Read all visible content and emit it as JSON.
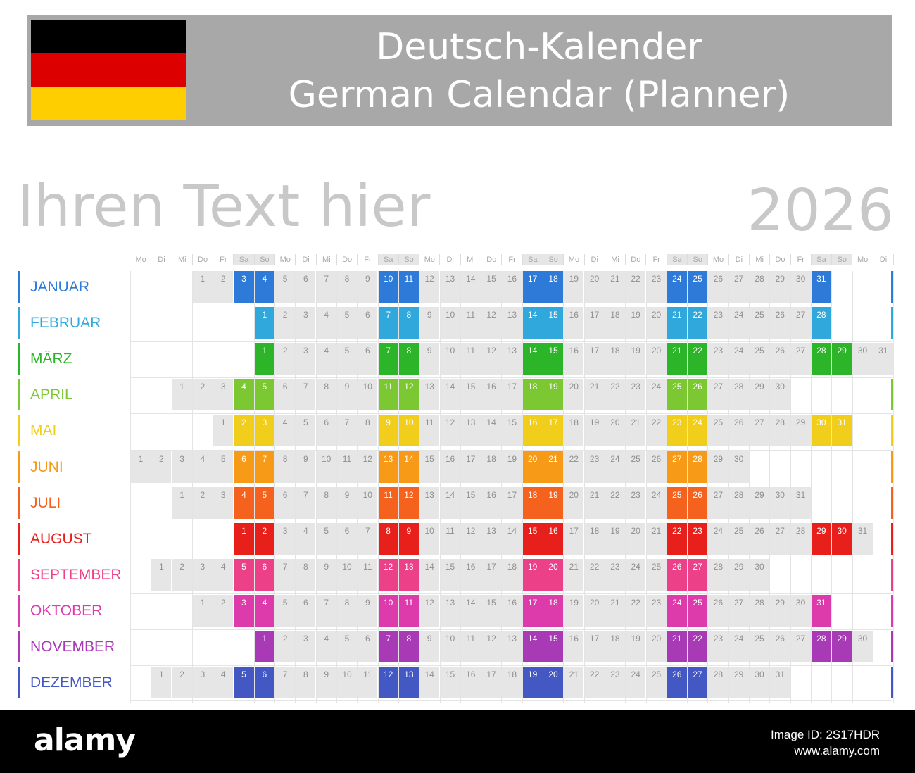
{
  "header": {
    "title_de": "Deutsch-Kalender",
    "title_en": "German Calendar (Planner)",
    "flag_icon": "germany-flag-icon",
    "flag_colors": [
      "#000000",
      "#dd0000",
      "#ffce00"
    ]
  },
  "custom_text": "Ihren Text hier",
  "year": "2026",
  "weekday_headers": [
    "Mo",
    "Di",
    "Mi",
    "Do",
    "Fr",
    "Sa",
    "So",
    "Mo",
    "Di",
    "Mi",
    "Do",
    "Fr",
    "Sa",
    "So",
    "Mo",
    "Di",
    "Mi",
    "Do",
    "Fr",
    "Sa",
    "So",
    "Mo",
    "Di",
    "Mi",
    "Do",
    "Fr",
    "Sa",
    "So",
    "Mo",
    "Di",
    "Mi",
    "Do",
    "Fr",
    "Sa",
    "So",
    "Mo",
    "Di"
  ],
  "months": [
    {
      "name": "JANUAR",
      "color": "#2e7ad8",
      "offset": 3,
      "days": 31
    },
    {
      "name": "FEBRUAR",
      "color": "#30a8dc",
      "offset": 6,
      "days": 28
    },
    {
      "name": "MÄRZ",
      "color": "#2db52a",
      "offset": 6,
      "days": 31
    },
    {
      "name": "APRIL",
      "color": "#7cc832",
      "offset": 2,
      "days": 30
    },
    {
      "name": "MAI",
      "color": "#f2ce1c",
      "offset": 4,
      "days": 31
    },
    {
      "name": "JUNI",
      "color": "#f69a17",
      "offset": 0,
      "days": 30
    },
    {
      "name": "JULI",
      "color": "#f5621d",
      "offset": 2,
      "days": 31
    },
    {
      "name": "AUGUST",
      "color": "#e8201c",
      "offset": 5,
      "days": 31
    },
    {
      "name": "SEPTEMBER",
      "color": "#ec4088",
      "offset": 1,
      "days": 30
    },
    {
      "name": "OKTOBER",
      "color": "#dd3bab",
      "offset": 3,
      "days": 31
    },
    {
      "name": "NOVEMBER",
      "color": "#a83ab6",
      "offset": 6,
      "days": 30
    },
    {
      "name": "DEZEMBER",
      "color": "#4458c4",
      "offset": 1,
      "days": 31
    }
  ],
  "footer": {
    "logo": "alamy",
    "image_id": "Image ID: 2S17HDR",
    "site": "www.alamy.com"
  }
}
